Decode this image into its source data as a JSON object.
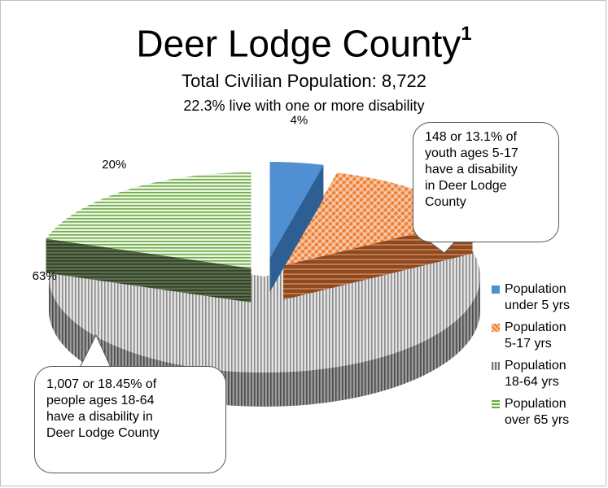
{
  "chart_data": {
    "type": "pie",
    "title": "Deer Lodge County",
    "title_footnote": "1",
    "subtitle": "Total Civilian Population: 8,722",
    "subtitle2": "22.3% live with one or more disability",
    "slices": [
      {
        "label": "Population under 5 yrs",
        "value": 4,
        "display": "4%",
        "color": "#4f8fd2",
        "exploded": true
      },
      {
        "label": "Population 5-17 yrs",
        "value": 13,
        "display": "13%",
        "color": "#ed7d31",
        "pattern": "diagonal-crosshatch",
        "exploded": true
      },
      {
        "label": "Population 18-64 yrs",
        "value": 63,
        "display": "63%",
        "color": "#7f7f7f",
        "pattern": "vertical-stripes",
        "exploded": false
      },
      {
        "label": "Population over 65 yrs",
        "value": 20,
        "display": "20%",
        "color": "#6fab46",
        "pattern": "horizontal-stripes",
        "exploded": true
      }
    ],
    "legend_position": "right",
    "legend": [
      "Population under 5 yrs",
      "Population 5-17 yrs",
      "Population 18-64 yrs",
      "Population over 65 yrs"
    ],
    "legend_lines": [
      [
        "Population",
        "under 5 yrs"
      ],
      [
        "Population",
        "5-17 yrs"
      ],
      [
        "Population",
        "18-64 yrs"
      ],
      [
        "Population",
        "over 65 yrs"
      ]
    ],
    "annotations": [
      {
        "target": "Population 5-17 yrs",
        "lines": [
          "148 or 13.1% of",
          "youth ages 5-17",
          "have a disability",
          "in Deer Lodge",
          "County"
        ]
      },
      {
        "target": "Population 18-64 yrs",
        "lines": [
          "1,007 or 18.45% of",
          "people ages 18-64",
          "have a disability in",
          "Deer Lodge County"
        ]
      }
    ]
  }
}
